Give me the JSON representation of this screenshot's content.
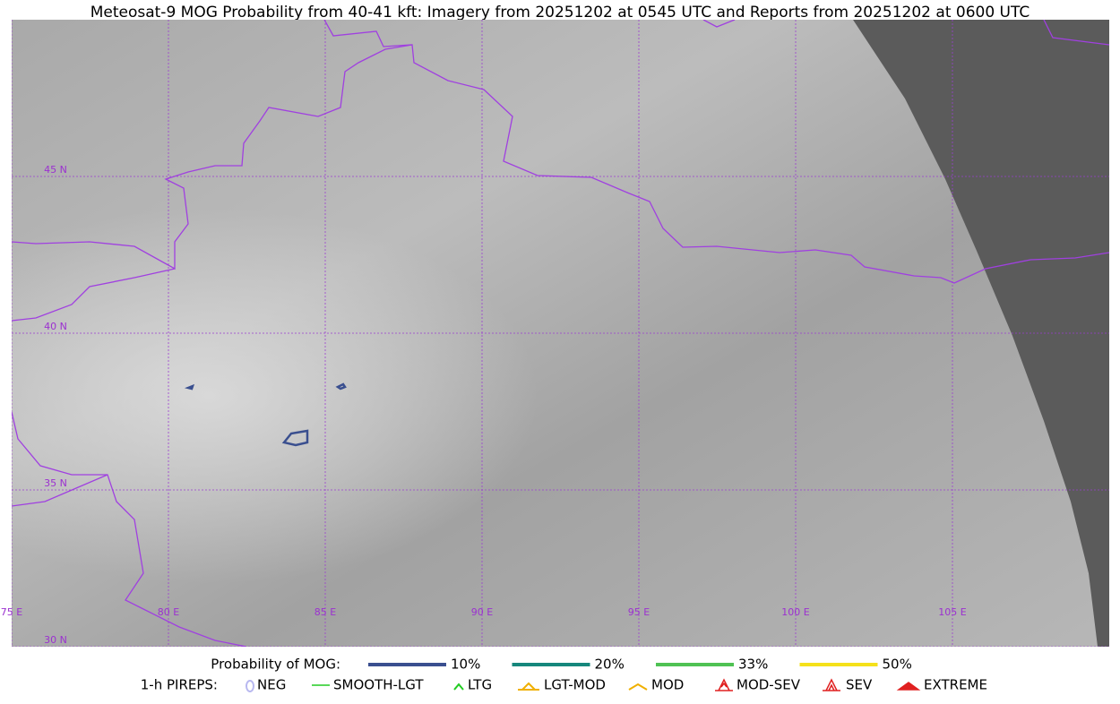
{
  "title": "Meteosat-9 MOG Probability from 40-41 kft: Imagery from 20251202 at 0545 UTC and Reports from 20251202 at 0600 UTC",
  "grid": {
    "lon_labels": [
      "75 E",
      "80 E",
      "85 E",
      "90 E",
      "95 E",
      "100 E",
      "105 E"
    ],
    "lat_labels": [
      "45 N",
      "40 N",
      "35 N",
      "30 N"
    ]
  },
  "legend": {
    "probability": {
      "label": "Probability of MOG:",
      "items": [
        {
          "label": "10%",
          "color": "#3a4f8f"
        },
        {
          "label": "20%",
          "color": "#16877c"
        },
        {
          "label": "33%",
          "color": "#4fc253"
        },
        {
          "label": "50%",
          "color": "#f5e11a"
        }
      ]
    },
    "pireps": {
      "label": "1-h PIREPS:",
      "items": [
        {
          "label": "NEG",
          "color": "#b8b8f0"
        },
        {
          "label": "SMOOTH-LGT",
          "color": "#22cc22"
        },
        {
          "label": "LTG",
          "color": "#22cc22"
        },
        {
          "label": "LGT-MOD",
          "color": "#f0b000"
        },
        {
          "label": "MOD",
          "color": "#f0b000"
        },
        {
          "label": "MOD-SEV",
          "color": "#e02020"
        },
        {
          "label": "SEV",
          "color": "#e02020"
        },
        {
          "label": "EXTREME",
          "color": "#e02020"
        }
      ]
    }
  }
}
